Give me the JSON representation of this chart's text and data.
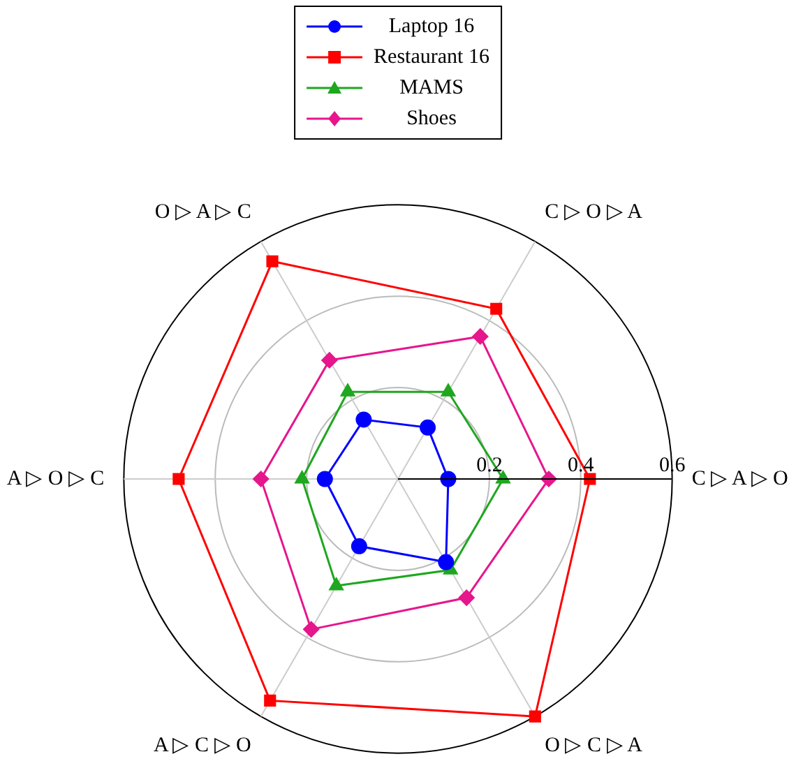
{
  "chart_data": {
    "type": "radar",
    "categories": [
      "C ▷ O ▷ A",
      "C ▷ A ▷ O",
      "O ▷ C ▷ A",
      "A ▷ C ▷ O",
      "A ▷ O ▷ C",
      "O ▷ A ▷ C"
    ],
    "series": [
      {
        "name": "Laptop 16",
        "color": "#0000ff",
        "marker": "circle",
        "values": [
          0.13,
          0.11,
          0.21,
          0.17,
          0.16,
          0.15
        ]
      },
      {
        "name": "Restaurant 16",
        "color": "#ff0000",
        "marker": "square",
        "values": [
          0.43,
          0.42,
          0.6,
          0.56,
          0.48,
          0.55
        ]
      },
      {
        "name": "MAMS",
        "color": "#1fa71f",
        "marker": "triangle",
        "values": [
          0.22,
          0.23,
          0.23,
          0.27,
          0.21,
          0.22
        ]
      },
      {
        "name": "Shoes",
        "color": "#e6168c",
        "marker": "diamond",
        "values": [
          0.36,
          0.33,
          0.3,
          0.38,
          0.3,
          0.3
        ]
      }
    ],
    "ylim": [
      0,
      0.6
    ],
    "yticks": [
      0.2,
      0.4,
      0.6
    ],
    "grid": true,
    "legend": "top"
  }
}
